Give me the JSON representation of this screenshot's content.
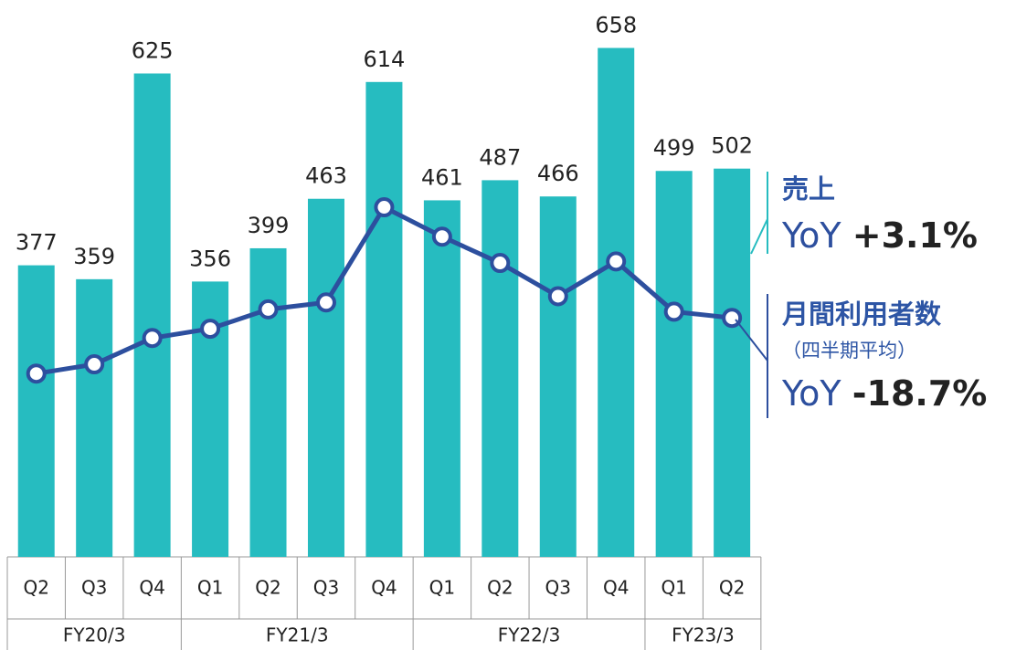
{
  "chart_data": {
    "type": "bar_line",
    "groups": [
      {
        "name": "FY20/3",
        "categories": [
          "Q2",
          "Q3",
          "Q4"
        ]
      },
      {
        "name": "FY21/3",
        "categories": [
          "Q1",
          "Q2",
          "Q3",
          "Q4"
        ]
      },
      {
        "name": "FY22/3",
        "categories": [
          "Q1",
          "Q2",
          "Q3",
          "Q4"
        ]
      },
      {
        "name": "FY23/3",
        "categories": [
          "Q1",
          "Q2"
        ]
      }
    ],
    "ylim": [
      0,
      720
    ],
    "series": [
      {
        "name": "売上",
        "type": "bar",
        "color": "#26bcc0",
        "values": [
          377,
          359,
          625,
          356,
          399,
          463,
          614,
          461,
          487,
          466,
          658,
          499,
          502
        ],
        "yoy_title": "YoY",
        "yoy": {
          "value": 3.1,
          "label": "+3.1%"
        }
      },
      {
        "name": "月間利用者数",
        "subtitle": "（四半期平均）",
        "type": "line",
        "color": "#2d4f9e",
        "values": [
          237,
          249,
          283,
          295,
          320,
          329,
          452,
          414,
          380,
          337,
          382,
          317,
          309
        ],
        "yoy_title": "YoY",
        "yoy": {
          "value": -18.7,
          "label": "-18.7%"
        }
      }
    ]
  }
}
